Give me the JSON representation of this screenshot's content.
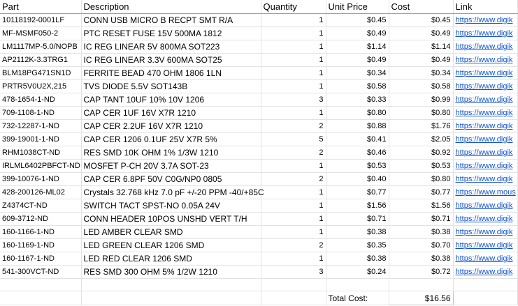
{
  "headers": [
    "Part",
    "Description",
    "Quantity",
    "Unit Price",
    "Cost",
    "Link"
  ],
  "rows": [
    [
      "10118192-0001LF",
      "CONN USB MICRO B RECPT SMT R/A",
      "1",
      "$0.45",
      "$0.45",
      "https://www.digik"
    ],
    [
      "MF-MSMF050-2",
      "PTC RESET FUSE 15V 500MA 1812",
      "1",
      "$0.49",
      "$0.49",
      "https://www.digik"
    ],
    [
      "LM1117MP-5.0/NOPB",
      "IC REG LINEAR 5V 800MA SOT223",
      "1",
      "$1.14",
      "$1.14",
      "https://www.digik"
    ],
    [
      "AP2112K-3.3TRG1",
      "IC REG LINEAR 3.3V 600MA SOT25",
      "1",
      "$0.49",
      "$0.49",
      "https://www.digik"
    ],
    [
      "BLM18PG471SN1D",
      "FERRITE BEAD 470 OHM 1806 1LN",
      "1",
      "$0.34",
      "$0.34",
      "https://www.digik"
    ],
    [
      "PRTR5V0U2X,215",
      "TVS DIODE 5.5V SOT143B",
      "1",
      "$0.58",
      "$0.58",
      "https://www.digik"
    ],
    [
      "478-1654-1-ND",
      "CAP TANT 10UF 10% 10V 1206",
      "3",
      "$0.33",
      "$0.99",
      "https://www.digik"
    ],
    [
      "709-1108-1-ND",
      "CAP CER 1UF 16V X7R 1210",
      "1",
      "$0.80",
      "$0.80",
      "https://www.digik"
    ],
    [
      "732-12287-1-ND",
      "CAP CER 2.2UF 16V X7R 1210",
      "2",
      "$0.88",
      "$1.76",
      "https://www.digik"
    ],
    [
      "399-19001-1-ND",
      "CAP CER 1206 0.1UF 25V X7R 5%",
      "5",
      "$0.41",
      "$2.05",
      "https://www.digik"
    ],
    [
      "RHM1038CT-ND",
      "RES SMD 10K OHM 1% 1/3W 1210",
      "2",
      "$0.46",
      "$0.92",
      "https://www.digik"
    ],
    [
      "IRLML6402PBFCT-ND",
      "MOSFET P-CH 20V 3.7A SOT-23",
      "1",
      "$0.53",
      "$0.53",
      "https://www.digik"
    ],
    [
      "399-10076-1-ND",
      "CAP CER 6.8PF 50V C0G/NP0 0805",
      "2",
      "$0.40",
      "$0.80",
      "https://www.digik"
    ],
    [
      "428-200126-ML02",
      "Crystals 32.768 kHz 7.0 pF +/-20 PPM -40/+85C",
      "1",
      "$0.77",
      "$0.77",
      "https://www.mous"
    ],
    [
      "Z4374CT-ND",
      "SWITCH TACT SPST-NO 0.05A 24V",
      "1",
      "$1.56",
      "$1.56",
      "https://www.digik"
    ],
    [
      "609-3712-ND",
      "CONN HEADER 10POS UNSHD VERT T/H",
      "1",
      "$0.71",
      "$0.71",
      "https://www.digik"
    ],
    [
      "160-1166-1-ND",
      "LED AMBER CLEAR SMD",
      "1",
      "$0.38",
      "$0.38",
      "https://www.digik"
    ],
    [
      "160-1169-1-ND",
      "LED GREEN CLEAR 1206 SMD",
      "2",
      "$0.35",
      "$0.70",
      "https://www.digik"
    ],
    [
      "160-1167-1-ND",
      "LED RED CLEAR 1206 SMD",
      "1",
      "$0.38",
      "$0.38",
      "https://www.digik"
    ],
    [
      "541-300VCT-ND",
      "RES SMD 300 OHM 5% 1/2W 1210",
      "3",
      "$0.24",
      "$0.72",
      "https://www.digik"
    ]
  ],
  "total": {
    "label": "Total Cost:",
    "value": "$16.56"
  },
  "colors": {
    "link": "#1155cc",
    "grid": "#e2e3e3"
  }
}
